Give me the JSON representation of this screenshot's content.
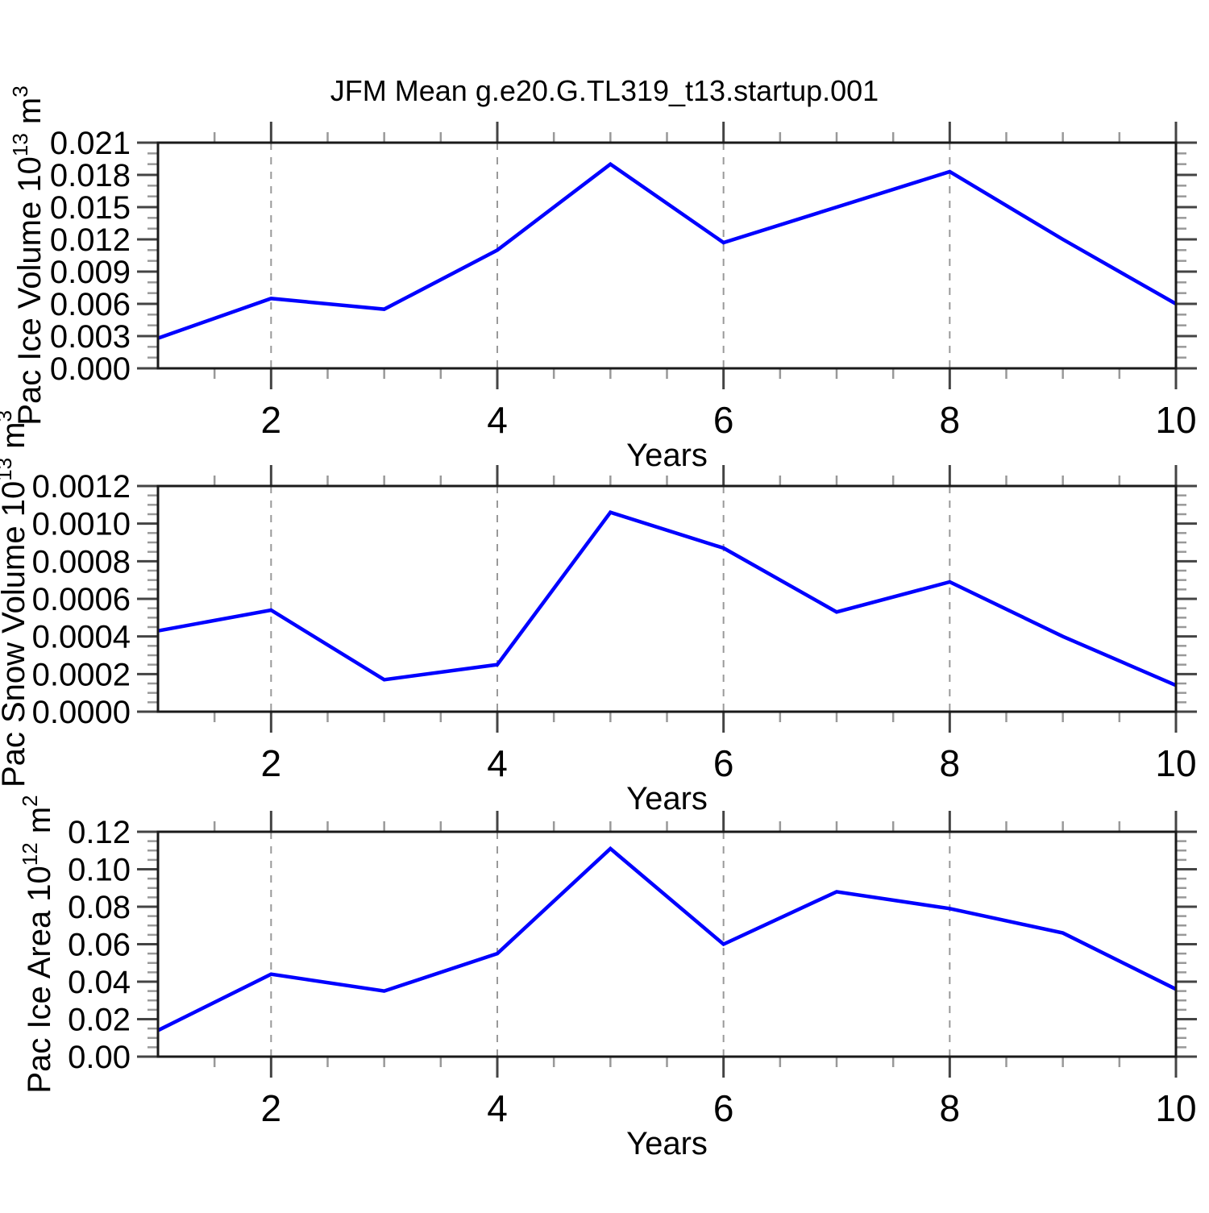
{
  "title": "JFM Mean g.e20.G.TL319_t13.startup.001",
  "xlabel": "Years",
  "colors": {
    "line": "#0000ff",
    "frame": "#1a1a1a",
    "major_tick": "#444444",
    "minor_tick": "#999999",
    "grid": "#999999",
    "text": "#000000"
  },
  "chart_data": [
    {
      "type": "line",
      "name": "pac-ice-volume",
      "ylabel": "Pac Ice Volume 10^13 m^3",
      "ylabel_segments": [
        {
          "t": "Pac Ice Volume 10"
        },
        {
          "t": "13",
          "sup": true
        },
        {
          "t": " m"
        },
        {
          "t": "3",
          "sup": true
        }
      ],
      "xlabel": "Years",
      "x": [
        1,
        2,
        3,
        4,
        5,
        6,
        7,
        8,
        9,
        10
      ],
      "y": [
        0.0028,
        0.0065,
        0.0055,
        0.011,
        0.019,
        0.0117,
        0.015,
        0.0183,
        0.012,
        0.006
      ],
      "xlim": [
        1,
        10
      ],
      "ylim": [
        0,
        0.021
      ],
      "y_major_step": 0.003,
      "y_minor_per_gap": 2,
      "y_tick_labels": [
        "0.000",
        "0.003",
        "0.006",
        "0.009",
        "0.012",
        "0.015",
        "0.018",
        "0.021"
      ],
      "x_major_ticks": [
        2,
        4,
        6,
        8,
        10
      ],
      "x_tick_labels": [
        "2",
        "4",
        "6",
        "8",
        "10"
      ],
      "x_minor_step": 0.5,
      "grid_x": [
        2,
        4,
        6,
        8
      ],
      "grid_on": true
    },
    {
      "type": "line",
      "name": "pac-snow-volume",
      "ylabel": "Pac Snow Volume 10^13 m^3",
      "ylabel_segments": [
        {
          "t": "Pac Snow Volume 10"
        },
        {
          "t": "13",
          "sup": true
        },
        {
          "t": " m"
        },
        {
          "t": "3",
          "sup": true
        }
      ],
      "xlabel": "Years",
      "x": [
        1,
        2,
        3,
        4,
        5,
        6,
        7,
        8,
        9,
        10
      ],
      "y": [
        0.00043,
        0.00054,
        0.00017,
        0.00025,
        0.00106,
        0.00087,
        0.00053,
        0.00069,
        0.0004,
        0.00014
      ],
      "xlim": [
        1,
        10
      ],
      "ylim": [
        0,
        0.0012
      ],
      "y_major_step": 0.0002,
      "y_minor_per_gap": 3,
      "y_tick_labels": [
        "0.0000",
        "0.0002",
        "0.0004",
        "0.0006",
        "0.0008",
        "0.0010",
        "0.0012"
      ],
      "x_major_ticks": [
        2,
        4,
        6,
        8,
        10
      ],
      "x_tick_labels": [
        "2",
        "4",
        "6",
        "8",
        "10"
      ],
      "x_minor_step": 0.5,
      "grid_x": [
        2,
        4,
        6,
        8
      ],
      "grid_on": true
    },
    {
      "type": "line",
      "name": "pac-ice-area",
      "ylabel": "Pac Ice Area 10^12 m^2",
      "ylabel_segments": [
        {
          "t": "Pac Ice Area 10"
        },
        {
          "t": "12",
          "sup": true
        },
        {
          "t": " m"
        },
        {
          "t": "2",
          "sup": true
        }
      ],
      "xlabel": "Years",
      "x": [
        1,
        2,
        3,
        4,
        5,
        6,
        7,
        8,
        9,
        10
      ],
      "y": [
        0.014,
        0.044,
        0.035,
        0.055,
        0.111,
        0.06,
        0.088,
        0.079,
        0.066,
        0.036
      ],
      "xlim": [
        1,
        10
      ],
      "ylim": [
        0,
        0.12
      ],
      "y_major_step": 0.02,
      "y_minor_per_gap": 3,
      "y_tick_labels": [
        "0.00",
        "0.02",
        "0.04",
        "0.06",
        "0.08",
        "0.10",
        "0.12"
      ],
      "x_major_ticks": [
        2,
        4,
        6,
        8,
        10
      ],
      "x_tick_labels": [
        "2",
        "4",
        "6",
        "8",
        "10"
      ],
      "x_minor_step": 0.5,
      "grid_x": [
        2,
        4,
        6,
        8
      ],
      "grid_on": true
    }
  ]
}
